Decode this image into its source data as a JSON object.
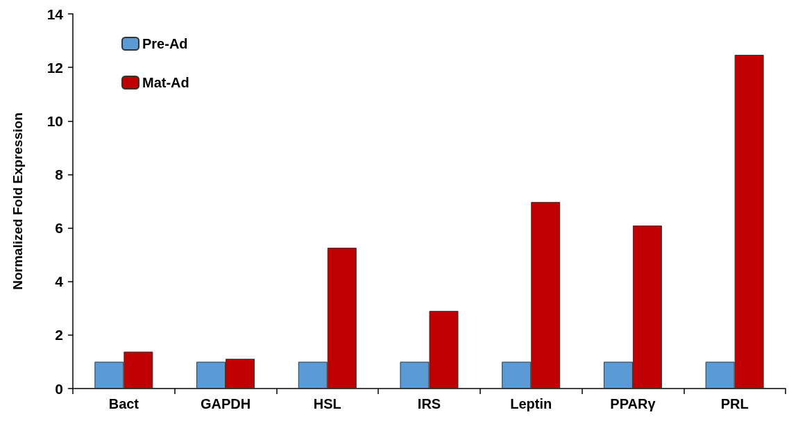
{
  "chart_data": {
    "type": "bar",
    "ylabel": "Normalized Fold Expression",
    "categories": [
      "Bact",
      "GAPDH",
      "HSL",
      "IRS",
      "Leptin",
      "PPARγ",
      "PRL"
    ],
    "series": [
      {
        "name": "Pre-Ad",
        "color": "#5b9bd5",
        "values": [
          1,
          1,
          1,
          1,
          1,
          1,
          1
        ]
      },
      {
        "name": "Mat-Ad",
        "color": "#c00000",
        "values": [
          1.38,
          1.11,
          5.26,
          2.9,
          6.97,
          6.09,
          12.47
        ]
      }
    ],
    "ylim": [
      0,
      14
    ],
    "yticks": [
      0,
      2,
      4,
      6,
      8,
      10,
      12,
      14
    ],
    "grid": false,
    "legend": "top left"
  }
}
